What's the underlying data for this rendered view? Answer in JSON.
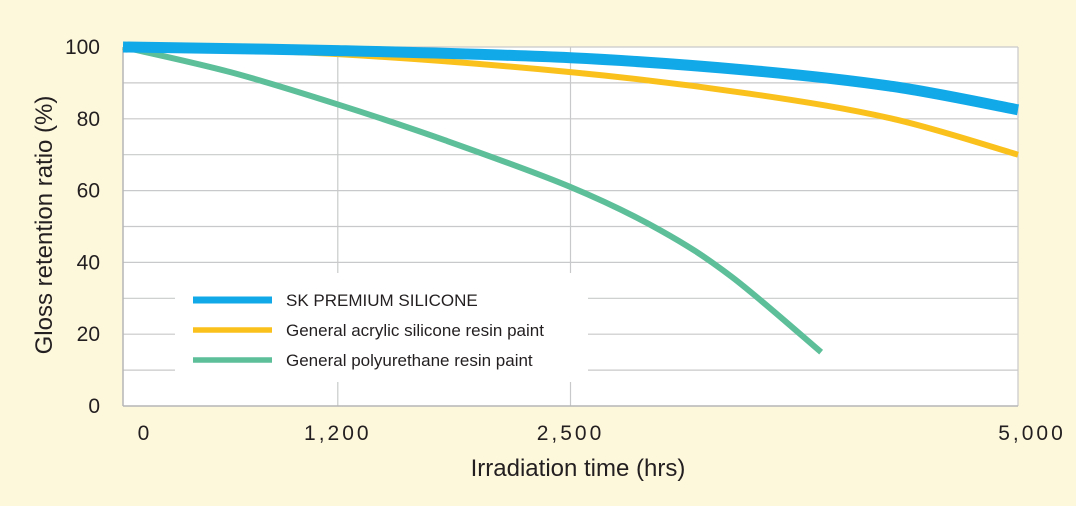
{
  "chart_data": {
    "type": "line",
    "xlabel": "Irradiation time (hrs)",
    "ylabel": "Gloss retention ratio (%)",
    "xlim": [
      0,
      5000
    ],
    "ylim": [
      0,
      100
    ],
    "x_ticks": [
      0,
      1200,
      2500,
      5000
    ],
    "x_tick_labels": [
      "0",
      "1,200",
      "2,500",
      "5,000"
    ],
    "y_ticks": [
      0,
      20,
      40,
      60,
      80,
      100
    ],
    "y_tick_labels": [
      "0",
      "20",
      "40",
      "60",
      "80",
      "100"
    ],
    "grid": true,
    "legend_position": "bottom-left",
    "series": [
      {
        "name": "SK PREMIUM SILICONE",
        "color": "#12a9e8",
        "x": [
          0,
          1200,
          2500,
          3500,
          4300,
          5000
        ],
        "y": [
          100,
          99,
          97,
          93.5,
          89,
          82.5
        ]
      },
      {
        "name": "General acrylic silicone resin paint",
        "color": "#fac11d",
        "x": [
          0,
          1200,
          2500,
          3500,
          4300,
          5000
        ],
        "y": [
          100,
          98,
          93,
          87,
          80,
          70
        ]
      },
      {
        "name": "General polyurethane resin paint",
        "color": "#5cbf9a",
        "x": [
          0,
          600,
          1200,
          1800,
          2500,
          3000,
          3400,
          3900
        ],
        "y": [
          100,
          93,
          84,
          74,
          61,
          49,
          36,
          15
        ]
      }
    ]
  }
}
